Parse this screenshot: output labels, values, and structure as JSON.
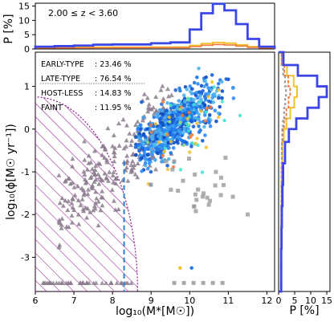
{
  "chart_data": {
    "type": "scatter",
    "redshift_label": "2.00 ≤ z < 3.60",
    "xlabel": "log₁₀(M*[M☉])",
    "ylabel": "log₁₀(ϕ[M☉ yr⁻¹])",
    "top_hist_ylabel": "P [%]",
    "right_hist_xlabel": "P [%]",
    "xlim": [
      6,
      12.2
    ],
    "ylim": [
      -3.8,
      1.8
    ],
    "x_ticks": [
      6,
      7,
      8,
      9,
      10,
      11,
      12
    ],
    "y_ticks": [
      1,
      0,
      -1,
      -2,
      -3
    ],
    "top_hist_ylim": [
      0,
      16
    ],
    "top_hist_ticks": [
      0,
      5,
      10,
      15
    ],
    "right_hist_xlim": [
      0,
      16
    ],
    "right_hist_ticks": [
      0,
      5,
      10,
      15
    ],
    "legend": [
      {
        "label": "EARLY-TYPE",
        "value": "23.46",
        "unit": "%"
      },
      {
        "label": "LATE-TYPE",
        "value": "76.54",
        "unit": "%"
      },
      {
        "label": "HOST-LESS",
        "value": "14.83",
        "unit": "%"
      },
      {
        "label": "FAINT",
        "value": "11.95",
        "unit": "%"
      }
    ],
    "mass_limit_x": 8.3,
    "colors": {
      "main": "#3a46e6",
      "yellow": "#f2c12e",
      "orange": "#f07a3a",
      "gray": "#9a9a9a",
      "purple": "#8a1a8a",
      "dashed": "#2a7fd0"
    },
    "top_hist": {
      "bin_edges": [
        6,
        6.5,
        7,
        7.5,
        8,
        8.5,
        9,
        9.5,
        10,
        10.3,
        10.6,
        10.9,
        11.2,
        11.5,
        11.8,
        12.2
      ],
      "values": [
        0.8,
        1.0,
        1.2,
        1.5,
        1.6,
        1.6,
        2.0,
        2.3,
        6.8,
        12.5,
        15.8,
        13.5,
        8.7,
        3.5,
        0.8
      ]
    },
    "right_hist": {
      "bin_edges": [
        -3.8,
        -3.3,
        -2.8,
        -2.3,
        -1.8,
        -1.3,
        -0.8,
        -0.3,
        0.0,
        0.25,
        0.5,
        0.75,
        1.0,
        1.25,
        1.5,
        1.8
      ],
      "values": [
        0.8,
        0.8,
        0.9,
        1.0,
        1.2,
        1.4,
        2.0,
        3.2,
        5.5,
        9.0,
        12.5,
        15.0,
        12.0,
        6.0,
        1.5
      ]
    }
  }
}
